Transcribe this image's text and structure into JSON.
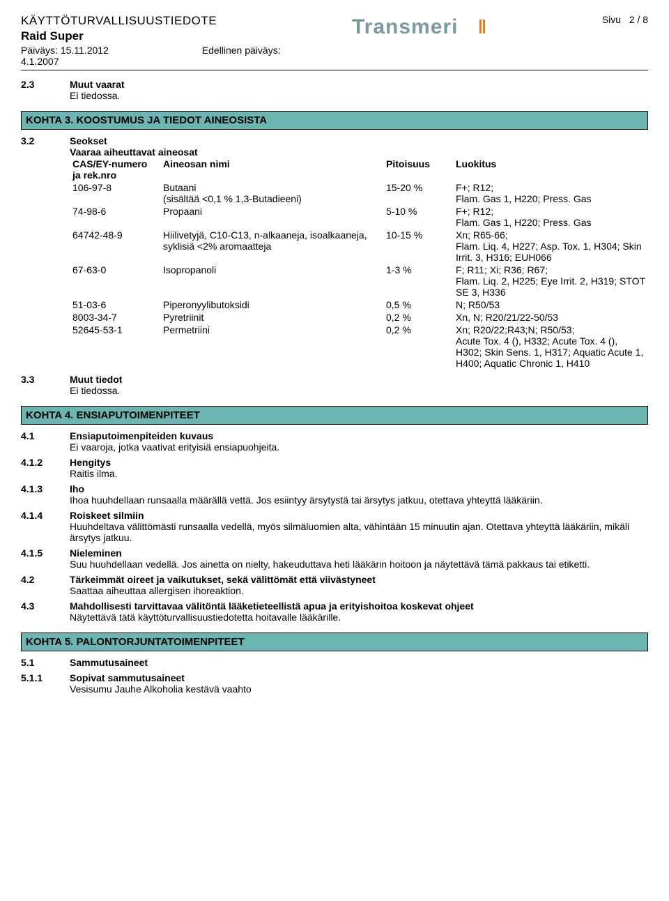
{
  "header": {
    "doc_title": "KÄYTTÖTURVALLISUUSTIEDOTE",
    "product": "Raid Super",
    "date_label": "Päiväys:",
    "date": "15.11.2012",
    "prev_date_label": "Edellinen päiväys:",
    "prev_date": "4.1.2007",
    "page_label": "Sivu",
    "page_num": "2 / 8",
    "logo_text": "Transmeri",
    "logo_color": "#7a9aa3"
  },
  "s23": {
    "num": "2.3",
    "title": "Muut vaarat",
    "body": "Ei tiedossa."
  },
  "kohta3": {
    "title": "KOHTA 3. KOOSTUMUS JA TIEDOT AINEOSISTA"
  },
  "s32": {
    "num": "3.2",
    "title": "Seokset",
    "subtitle": "Vaaraa aiheuttavat aineosat",
    "head": {
      "cas": "CAS/EY-numero ja rek.nro",
      "name": "Aineosan nimi",
      "pct": "Pitoisuus",
      "cls": "Luokitus"
    },
    "rows": [
      {
        "cas": "106-97-8",
        "name": "Butaani\n(sisältää <0,1 % 1,3-Butadieeni)",
        "pct": "15-20 %",
        "cls": "F+; R12;\nFlam. Gas 1, H220; Press. Gas"
      },
      {
        "cas": "74-98-6",
        "name": "Propaani",
        "pct": "5-10 %",
        "cls": "F+; R12;\nFlam. Gas 1, H220; Press. Gas"
      },
      {
        "cas": "64742-48-9",
        "name": "Hiilivetyjä, C10-C13, n-alkaaneja, isoalkaaneja, syklisiä <2% aromaatteja",
        "pct": "10-15 %",
        "cls": "Xn; R65-66;\nFlam. Liq. 4, H227; Asp. Tox. 1, H304; Skin Irrit. 3, H316; EUH066"
      },
      {
        "cas": "67-63-0",
        "name": "Isopropanoli",
        "pct": "1-3 %",
        "cls": "F; R11; Xi; R36; R67;\nFlam. Liq. 2, H225; Eye Irrit. 2, H319; STOT SE 3, H336"
      },
      {
        "cas": "51-03-6",
        "name": "Piperonyylibutoksidi",
        "pct": "0,5 %",
        "cls": "N; R50/53"
      },
      {
        "cas": "8003-34-7",
        "name": "Pyretriinit",
        "pct": "0,2 %",
        "cls": "Xn, N; R20/21/22-50/53"
      },
      {
        "cas": "52645-53-1",
        "name": "Permetriini",
        "pct": "0,2 %",
        "cls": "Xn; R20/22;R43;N; R50/53;\nAcute Tox. 4 (), H332; Acute Tox. 4 (), H302; Skin Sens. 1, H317; Aquatic Acute 1, H400; Aquatic Chronic 1, H410"
      }
    ]
  },
  "s33": {
    "num": "3.3",
    "title": "Muut tiedot",
    "body": "Ei tiedossa."
  },
  "kohta4": {
    "title": "KOHTA 4. ENSIAPUTOIMENPITEET"
  },
  "s41": {
    "num": "4.1",
    "title": "Ensiaputoimenpiteiden kuvaus",
    "body": "Ei vaaroja, jotka vaativat erityisiä ensiapuohjeita."
  },
  "s412": {
    "num": "4.1.2",
    "title": "Hengitys",
    "body": "Raitis ilma."
  },
  "s413": {
    "num": "4.1.3",
    "title": "Iho",
    "body": "Ihoa huuhdellaan runsaalla määrällä vettä. Jos esiintyy ärsytystä tai ärsytys jatkuu, otettava yhteyttä lääkäriin."
  },
  "s414": {
    "num": "4.1.4",
    "title": "Roiskeet silmiin",
    "body": "Huuhdeltava välittömästi runsaalla vedellä, myös silmäluomien alta, vähintään 15 minuutin ajan. Otettava yhteyttä lääkäriin, mikäli ärsytys jatkuu."
  },
  "s415": {
    "num": "4.1.5",
    "title": "Nieleminen",
    "body": "Suu huuhdellaan vedellä. Jos ainetta on nielty, hakeuduttava heti lääkärin hoitoon ja näytettävä tämä pakkaus tai etiketti."
  },
  "s42": {
    "num": "4.2",
    "title": "Tärkeimmät oireet ja vaikutukset, sekä välittömät että viivästyneet",
    "body": "Saattaa aiheuttaa allergisen ihoreaktion."
  },
  "s43": {
    "num": "4.3",
    "title": "Mahdollisesti tarvittavaa välitöntä lääketieteellistä apua ja erityishoitoa koskevat ohjeet",
    "body": "Näytettävä tätä käyttöturvallisuustiedotetta hoitavalle lääkärille."
  },
  "kohta5": {
    "title": "KOHTA 5. PALONTORJUNTATOIMENPITEET"
  },
  "s51": {
    "num": "5.1",
    "title": "Sammutusaineet"
  },
  "s511": {
    "num": "5.1.1",
    "title": "Sopivat sammutusaineet",
    "body": "Vesisumu  Jauhe  Alkoholia kestävä vaahto"
  }
}
